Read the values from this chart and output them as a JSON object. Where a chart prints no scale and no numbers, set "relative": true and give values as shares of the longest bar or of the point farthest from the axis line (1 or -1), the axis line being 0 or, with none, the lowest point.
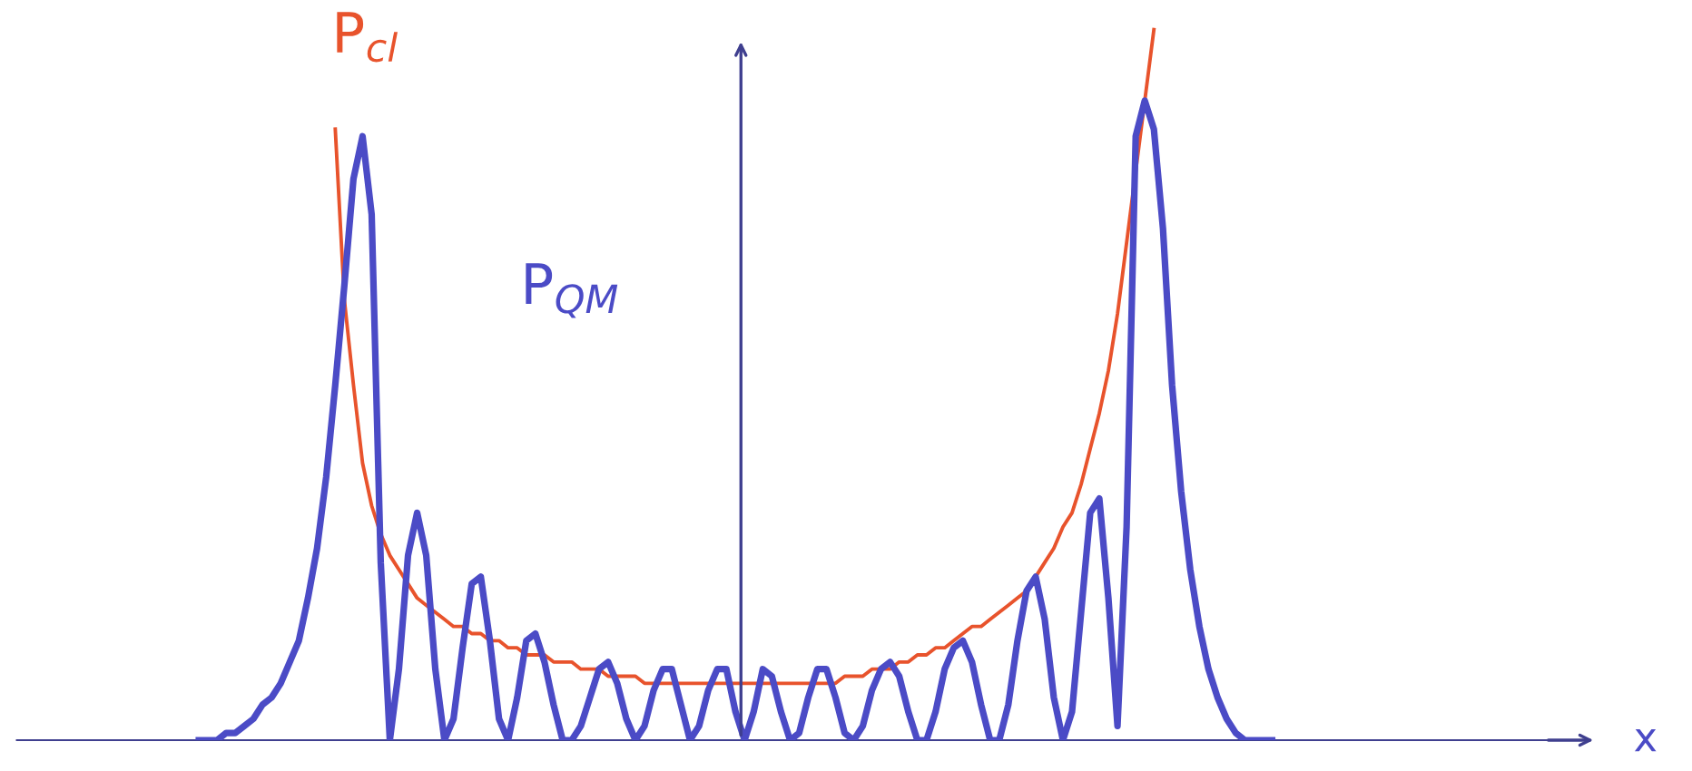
{
  "chart_data": {
    "type": "line",
    "relative": true,
    "annotations": [
      "x"
    ],
    "legend": false,
    "marker": "none",
    "line_style": "solid",
    "categories": [
      null,
      null,
      null,
      null,
      null,
      null,
      null,
      null,
      null,
      null,
      null,
      null,
      null,
      null,
      null,
      null,
      null,
      null,
      null,
      null,
      null,
      null,
      null,
      null,
      null,
      null,
      null,
      null,
      null,
      null,
      null,
      null,
      null,
      null,
      null,
      null,
      null,
      null,
      null,
      null,
      null,
      null,
      null,
      null,
      null,
      null,
      null,
      null,
      null,
      null,
      null,
      null,
      null,
      null,
      null,
      null,
      null,
      null,
      null,
      null,
      null,
      null,
      null,
      null,
      null,
      null,
      null,
      null,
      null,
      null,
      null,
      null,
      null,
      null,
      null,
      null,
      null,
      null,
      null,
      null,
      null,
      null,
      null,
      null,
      null,
      null,
      null,
      null,
      null,
      null,
      null,
      null,
      null,
      null,
      null,
      null,
      null,
      null,
      null,
      null,
      null,
      null,
      null,
      null,
      null,
      null,
      null,
      null,
      null,
      null,
      null,
      null,
      null,
      null,
      null,
      null,
      null,
      null,
      null
    ],
    "series": [
      {
        "name": "P$_{QM}$",
        "color": "#4b4bc6",
        "values": [
          0,
          0,
          0,
          0.01,
          0.01,
          0.02,
          0.03,
          0.05,
          0.06,
          0.08,
          0.11,
          0.14,
          0.2,
          0.27,
          0.37,
          0.5,
          0.64,
          0.79,
          0.85,
          0.74,
          0.25,
          0,
          0.1,
          0.26,
          0.32,
          0.26,
          0.1,
          0,
          0.03,
          0.13,
          0.22,
          0.23,
          0.14,
          0.03,
          0,
          0.06,
          0.14,
          0.15,
          0.11,
          0.05,
          0,
          0,
          0.02,
          0.06,
          0.1,
          0.11,
          0.08,
          0.03,
          0,
          0.02,
          0.07,
          0.1,
          0.1,
          0.05,
          0,
          0.02,
          0.07,
          0.1,
          0.1,
          0.04,
          0,
          0.04,
          0.1,
          0.09,
          0.04,
          0,
          0.01,
          0.06,
          0.1,
          0.1,
          0.06,
          0.01,
          0,
          0.02,
          0.07,
          0.1,
          0.11,
          0.09,
          0.04,
          0,
          0,
          0.04,
          0.1,
          0.13,
          0.14,
          0.11,
          0.05,
          0,
          0,
          0.05,
          0.14,
          0.21,
          0.23,
          0.17,
          0.06,
          0,
          0.04,
          0.18,
          0.32,
          0.34,
          0.2,
          0.02,
          0.3,
          0.85,
          0.9,
          0.86,
          0.72,
          0.5,
          0.35,
          0.24,
          0.16,
          0.1,
          0.06,
          0.03,
          0.01,
          0,
          0,
          0,
          0
        ]
      },
      {
        "name": "P$_{cl}$",
        "color": "#e8532c",
        "values": [
          null,
          null,
          null,
          null,
          null,
          null,
          null,
          null,
          null,
          null,
          null,
          null,
          null,
          null,
          null,
          0.86,
          0.62,
          0.5,
          0.39,
          0.33,
          0.29,
          0.26,
          0.24,
          0.22,
          0.2,
          0.19,
          0.18,
          0.17,
          0.16,
          0.16,
          0.15,
          0.15,
          0.14,
          0.14,
          0.13,
          0.13,
          0.12,
          0.12,
          0.12,
          0.11,
          0.11,
          0.11,
          0.1,
          0.1,
          0.1,
          0.09,
          0.09,
          0.09,
          0.09,
          0.08,
          0.08,
          0.08,
          0.08,
          0.08,
          0.08,
          0.08,
          0.08,
          0.08,
          0.08,
          0.08,
          0.08,
          0.08,
          0.08,
          0.08,
          0.08,
          0.08,
          0.08,
          0.08,
          0.08,
          0.08,
          0.08,
          0.09,
          0.09,
          0.09,
          0.1,
          0.1,
          0.1,
          0.11,
          0.11,
          0.12,
          0.12,
          0.13,
          0.13,
          0.14,
          0.15,
          0.16,
          0.16,
          0.17,
          0.18,
          0.19,
          0.2,
          0.21,
          0.23,
          0.25,
          0.27,
          0.3,
          0.32,
          0.36,
          0.41,
          0.46,
          0.52,
          0.6,
          0.7,
          0.8,
          0.9,
          1,
          null,
          null,
          null,
          null,
          null,
          null,
          null,
          null,
          null,
          null,
          null,
          null,
          null
        ]
      }
    ]
  }
}
